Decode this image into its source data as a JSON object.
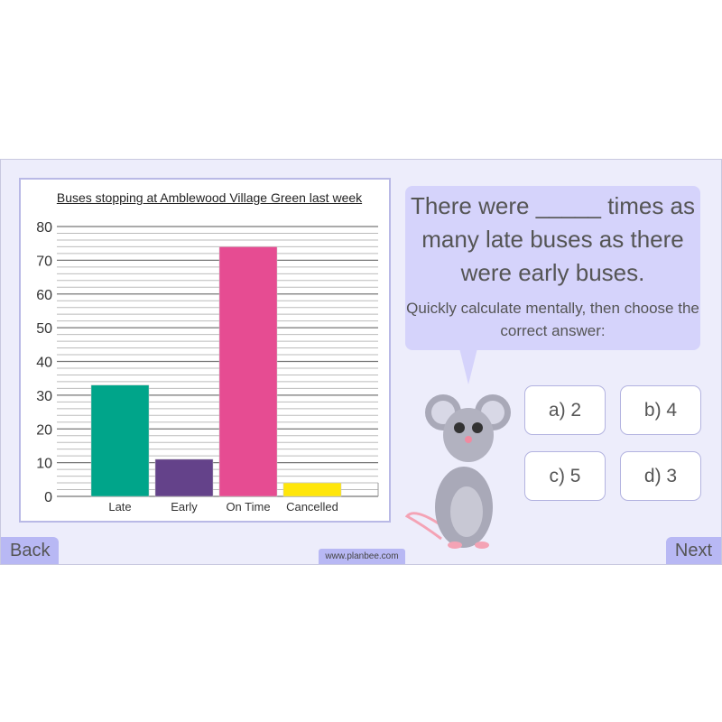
{
  "chart_data": {
    "type": "bar",
    "title": "Buses stopping at Amblewood Village Green last week",
    "categories": [
      "Late",
      "Early",
      "On Time",
      "Cancelled"
    ],
    "values": [
      33,
      11,
      74,
      4
    ],
    "colors": [
      "#00a58a",
      "#64428a",
      "#e64c92",
      "#ffe60a"
    ],
    "ylim": [
      0,
      80
    ],
    "yticks": [
      0,
      10,
      20,
      30,
      40,
      50,
      60,
      70,
      80
    ],
    "minor_grid_step": 2,
    "grid": true
  },
  "question": "There were _____ times as many late buses as there were early buses.",
  "instruction": "Quickly calculate mentally, then choose the correct answer:",
  "answers": [
    "a) 2",
    "b) 4",
    "c) 5",
    "d) 3"
  ],
  "nav": {
    "back": "Back",
    "next": "Next"
  },
  "site": "www.planbee.com",
  "icons": {
    "mascot": "mouse-icon"
  }
}
